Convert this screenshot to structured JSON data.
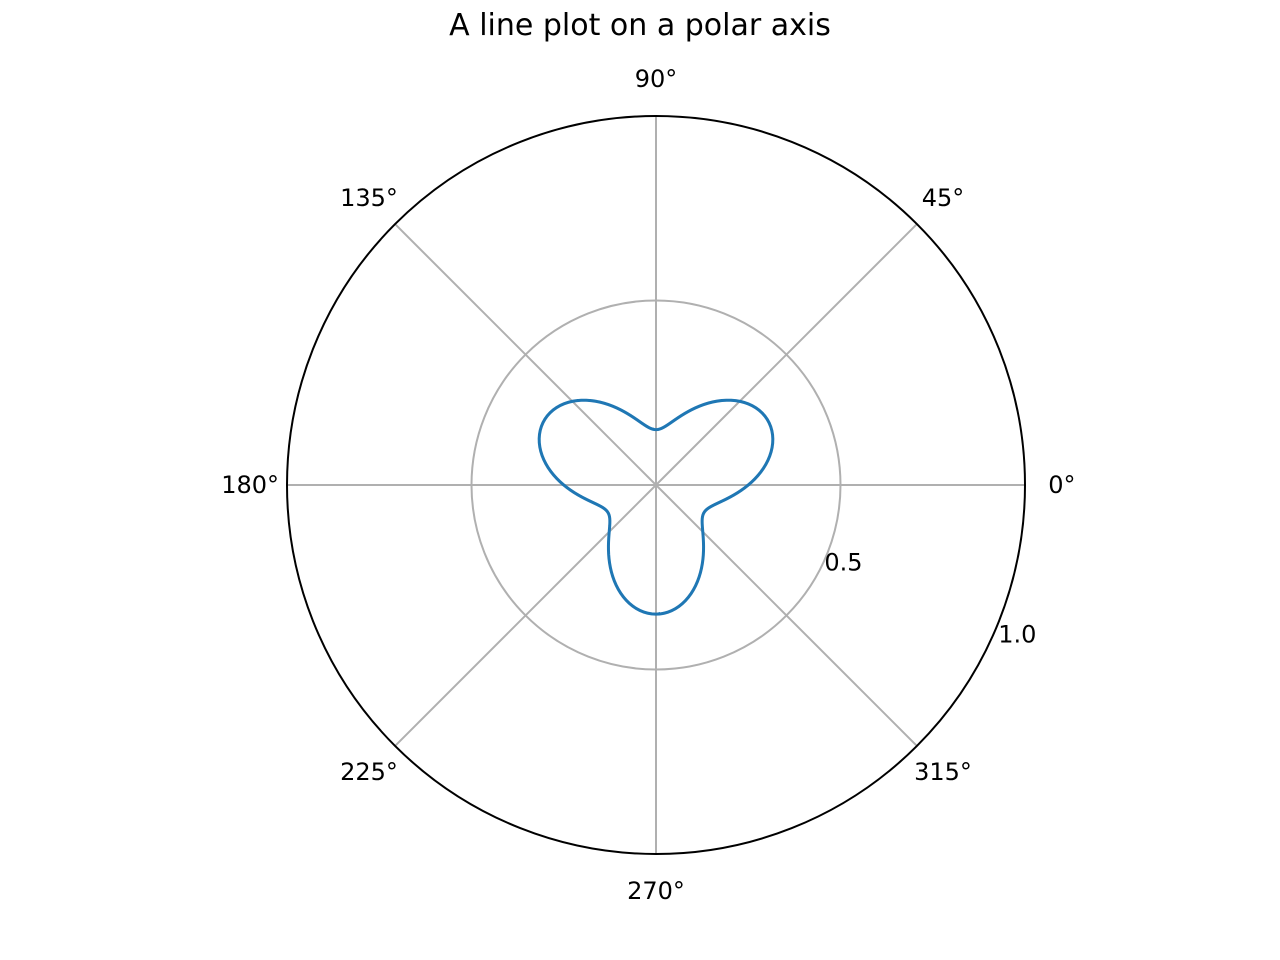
{
  "chart_data": {
    "type": "line",
    "projection": "polar",
    "title": "A line plot on a polar axis",
    "theta_unit": "degrees",
    "theta_ticks": [
      "0°",
      "45°",
      "90°",
      "135°",
      "180°",
      "225°",
      "270°",
      "315°"
    ],
    "theta_tick_values": [
      0,
      45,
      90,
      135,
      180,
      225,
      270,
      315
    ],
    "r_ticks": [
      "0.5",
      "1.0"
    ],
    "r_tick_values": [
      0.5,
      1.0
    ],
    "rlim": [
      0,
      1.0
    ],
    "r_label_angle_deg": -22.5,
    "grid": true,
    "series": [
      {
        "color": "#1f77b4",
        "curve": "r = 0.25 + 0.1 * sin(3 * theta) for theta in [0, 40*pi]",
        "r_min": 0.15,
        "r_max": 0.35,
        "theta_range_rad": [
          0,
          125.66
        ],
        "petals": 3
      }
    ]
  },
  "colors": {
    "line": "#1f77b4",
    "grid": "#b0b0b0",
    "spine": "#000000",
    "text": "#000000"
  }
}
